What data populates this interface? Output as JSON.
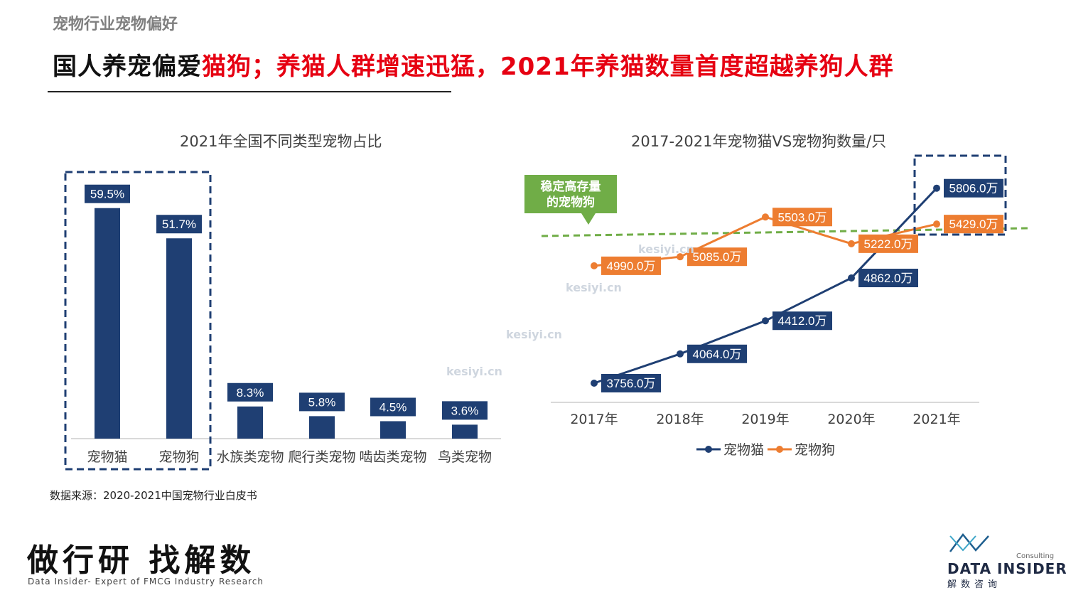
{
  "page": {
    "category": "宠物行业宠物偏好",
    "headline_black": "国人养宠偏爱",
    "headline_red1": "猫狗",
    "headline_sep": "；",
    "headline_red2": "养猫人群增速迅猛，2021年养猫数量首度超越养狗人群",
    "source": "数据来源：2020-2021中国宠物行业白皮书",
    "slogan": "做行研 找解数",
    "slogan_sub": "Data Insider- Expert of FMCG Industry Research",
    "brand_en": "DATA INSIDER",
    "brand_cn": "解数咨询",
    "brand_consulting": "Consulting",
    "watermark": "kesiyi.cn"
  },
  "colors": {
    "navy": "#1f3f73",
    "orange": "#ed7d31",
    "green": "#70ad47",
    "red": "#e60012"
  },
  "chart_data": [
    {
      "type": "bar",
      "title": "2021年全国不同类型宠物占比",
      "categories": [
        "宠物猫",
        "宠物狗",
        "水族类宠物",
        "爬行类宠物",
        "啮齿类宠物",
        "鸟类宠物"
      ],
      "values": [
        59.5,
        51.7,
        8.3,
        5.8,
        4.5,
        3.6
      ],
      "value_labels": [
        "59.5%",
        "51.7%",
        "8.3%",
        "5.8%",
        "4.5%",
        "3.6%"
      ],
      "unit": "%",
      "ylim": [
        0,
        60
      ],
      "highlight": [
        "宠物猫",
        "宠物狗"
      ]
    },
    {
      "type": "line",
      "title": "2017-2021年宠物猫VS宠物狗数量/只",
      "categories": [
        "2017年",
        "2018年",
        "2019年",
        "2020年",
        "2021年"
      ],
      "series": [
        {
          "name": "宠物猫",
          "values": [
            3756.0,
            4064.0,
            4412.0,
            4862.0,
            5806.0
          ],
          "labels": [
            "3756.0万",
            "4064.0万",
            "4412.0万",
            "4862.0万",
            "5806.0万"
          ]
        },
        {
          "name": "宠物狗",
          "values": [
            4990.0,
            5085.0,
            5503.0,
            5222.0,
            5429.0
          ],
          "labels": [
            "4990.0万",
            "5085.0万",
            "5503.0万",
            "5222.0万",
            "5429.0万"
          ]
        }
      ],
      "ylim": [
        3300,
        6200
      ],
      "callout": "稳定高存量的宠物狗",
      "callout_lines": [
        "稳定高存量",
        "的宠物狗"
      ],
      "legend_position": "bottom"
    }
  ]
}
